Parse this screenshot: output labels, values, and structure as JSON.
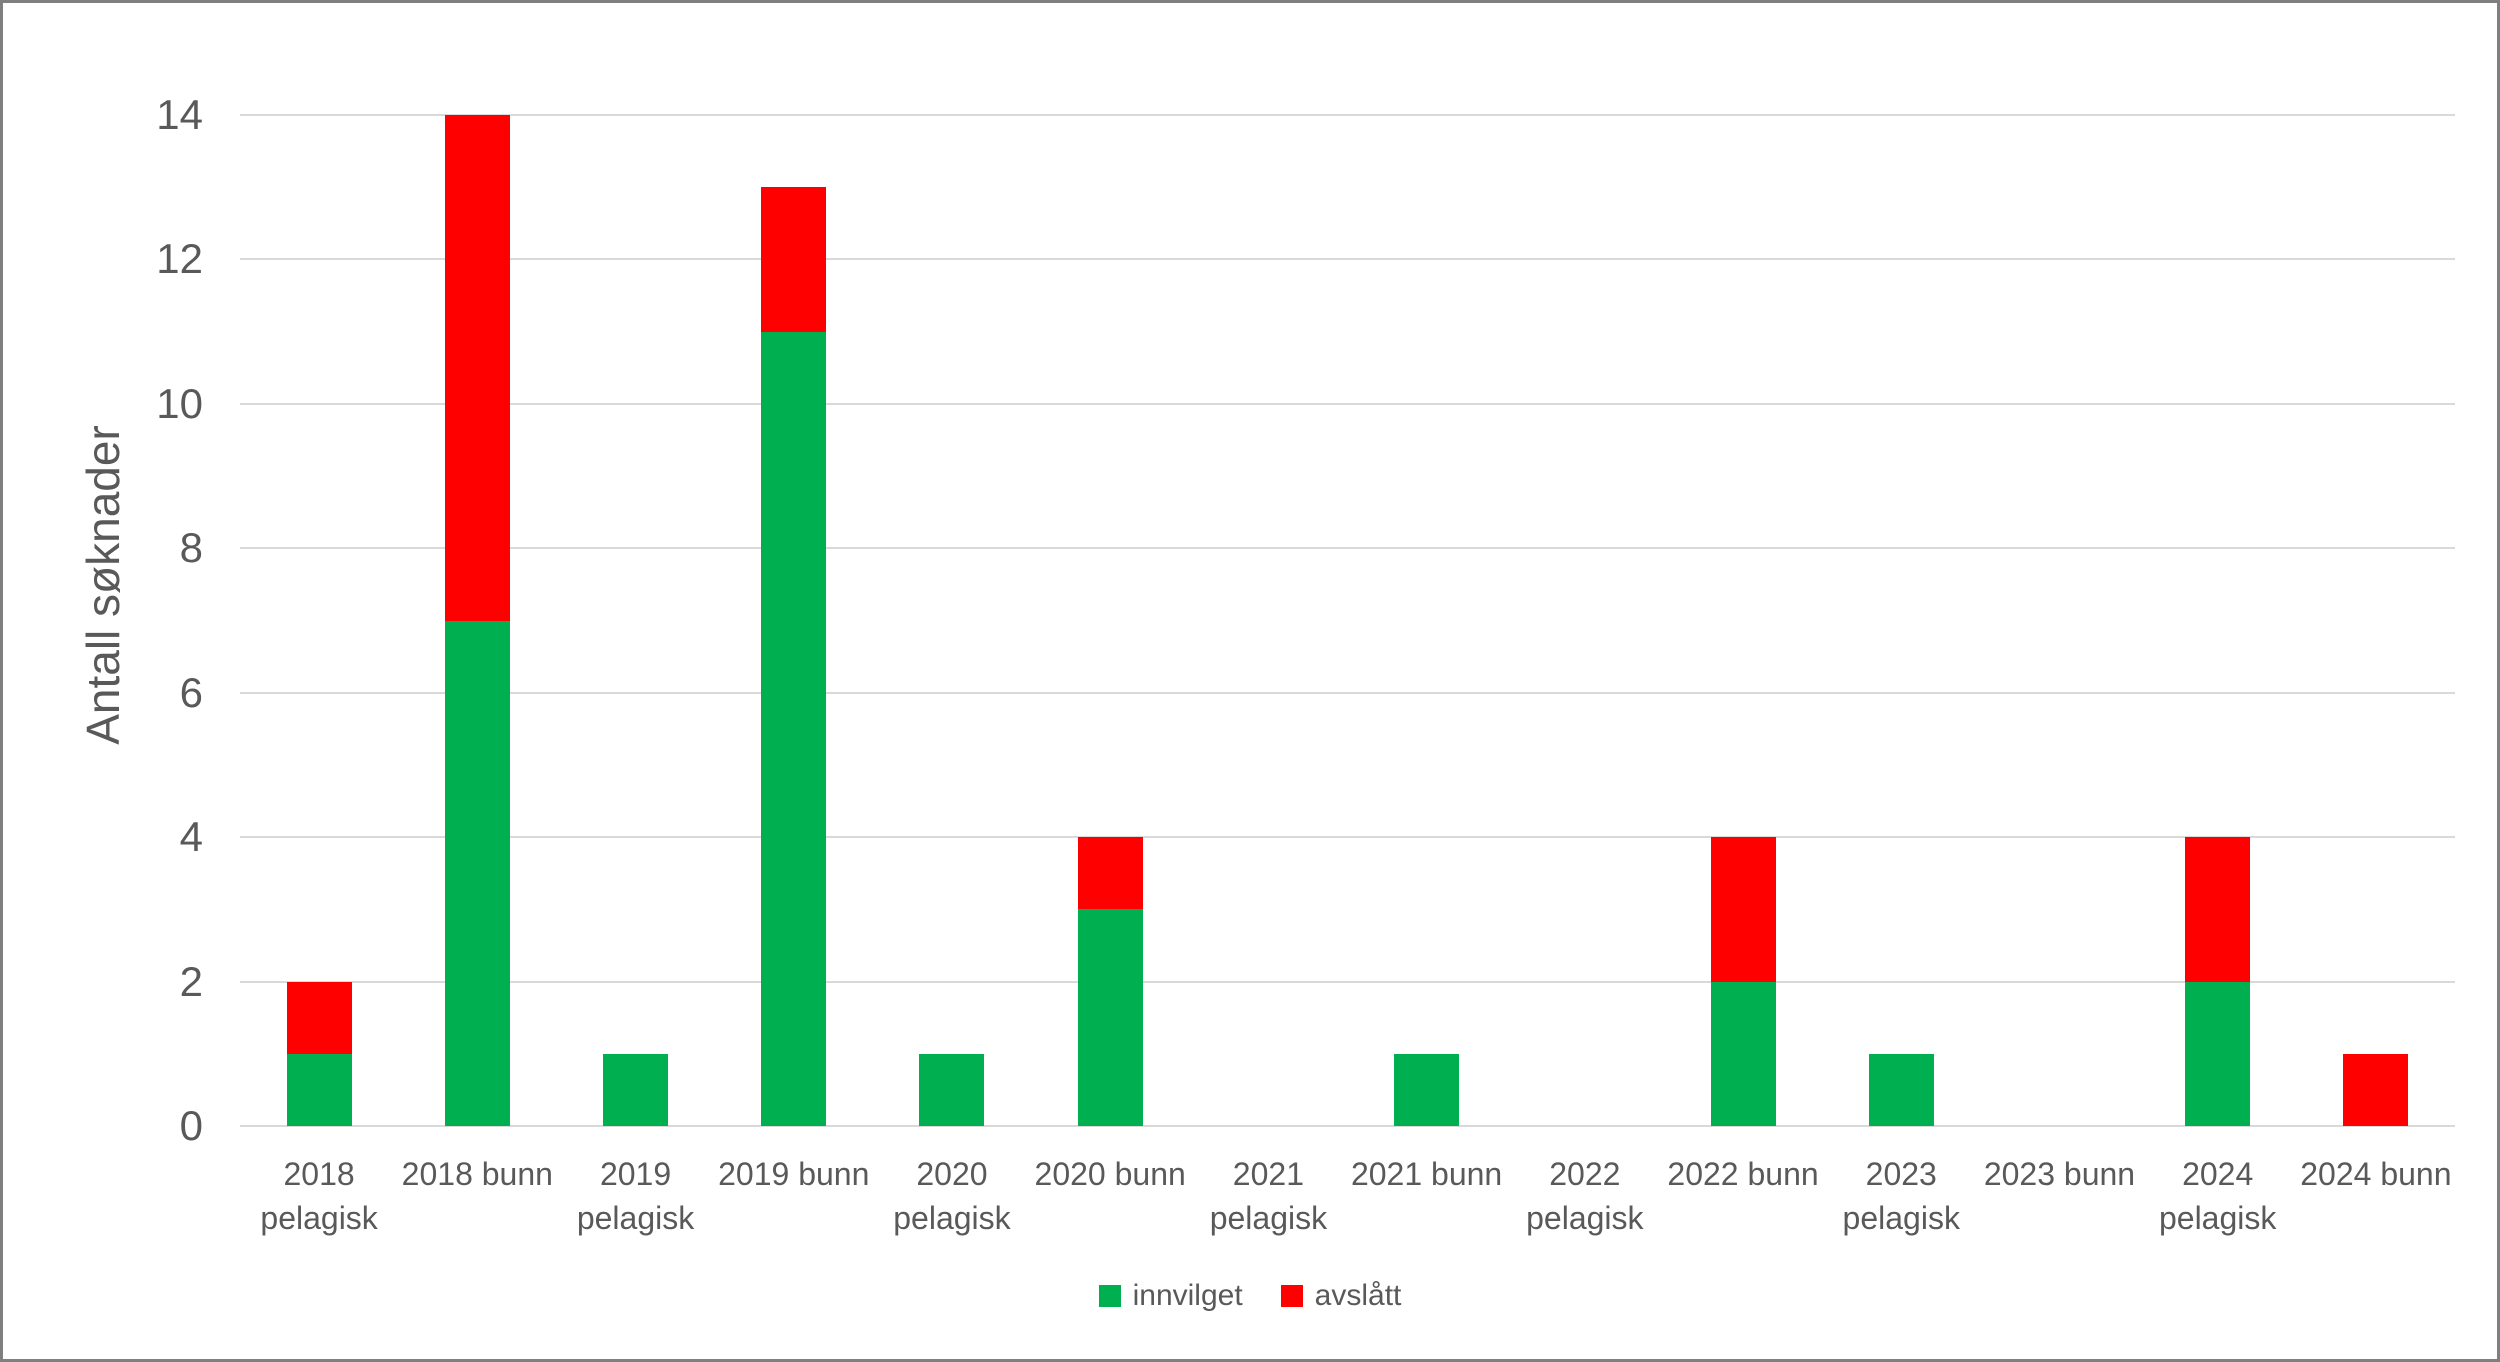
{
  "chart_data": {
    "type": "bar",
    "stacked": true,
    "title": "",
    "ylabel": "Antall søknader",
    "xlabel": "",
    "ylim": [
      0,
      14
    ],
    "yticks": [
      0,
      2,
      4,
      6,
      8,
      10,
      12,
      14
    ],
    "grid": true,
    "legend_position": "bottom",
    "categories": [
      "2018 pelagisk",
      "2018 bunn",
      "2019 pelagisk",
      "2019 bunn",
      "2020 pelagisk",
      "2020 bunn",
      "2021 pelagisk",
      "2021 bunn",
      "2022 pelagisk",
      "2022 bunn",
      "2023 pelagisk",
      "2023 bunn",
      "2024 pelagisk",
      "2024 bunn"
    ],
    "categories_display": [
      [
        "2018",
        "pelagisk"
      ],
      [
        "2018 bunn"
      ],
      [
        "2019",
        "pelagisk"
      ],
      [
        "2019 bunn"
      ],
      [
        "2020",
        "pelagisk"
      ],
      [
        "2020 bunn"
      ],
      [
        "2021",
        "pelagisk"
      ],
      [
        "2021 bunn"
      ],
      [
        "2022",
        "pelagisk"
      ],
      [
        "2022 bunn"
      ],
      [
        "2023",
        "pelagisk"
      ],
      [
        "2023 bunn"
      ],
      [
        "2024",
        "pelagisk"
      ],
      [
        "2024 bunn"
      ]
    ],
    "series": [
      {
        "name": "innvilget",
        "color": "#00B050",
        "values": [
          1,
          7,
          1,
          11,
          1,
          3,
          0,
          1,
          0,
          2,
          1,
          0,
          2,
          0
        ]
      },
      {
        "name": "avslått",
        "color": "#FF0000",
        "values": [
          1,
          7,
          0,
          2,
          0,
          1,
          0,
          0,
          0,
          2,
          0,
          0,
          2,
          1
        ]
      }
    ]
  },
  "colors": {
    "text": "#595959",
    "gridline": "#D9D9D9",
    "border": "#7F7F7F",
    "background": "#FFFFFF"
  }
}
